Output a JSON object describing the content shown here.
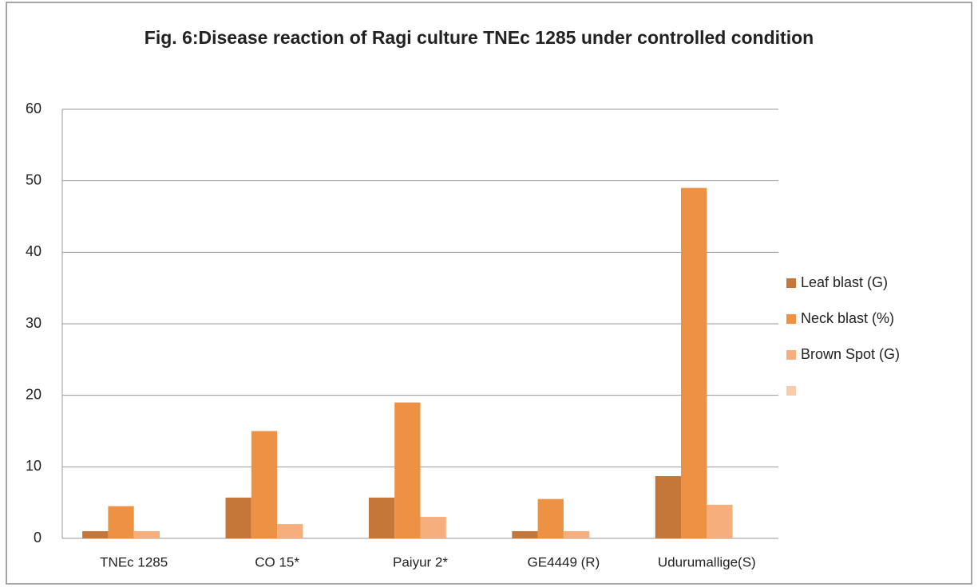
{
  "chart_data": {
    "type": "bar",
    "title": "Fig. 6:Disease reaction of Ragi culture TNEc 1285 under controlled condition",
    "categories": [
      "TNEc 1285",
      "CO 15*",
      "Paiyur 2*",
      "GE4449 (R)",
      "Udurumallige(S)"
    ],
    "series": [
      {
        "name": "Leaf blast (G)",
        "color": "#c5773a",
        "values": [
          1,
          5.7,
          5.7,
          1,
          8.7
        ]
      },
      {
        "name": "Neck blast (%)",
        "color": "#ed9144",
        "values": [
          4.5,
          15,
          19,
          5.5,
          49
        ]
      },
      {
        "name": "Brown Spot (G)",
        "color": "#f5ae7c",
        "values": [
          1,
          2,
          3,
          1,
          4.7
        ]
      },
      {
        "color": "#f9cbad",
        "values": [
          null,
          null,
          null,
          null,
          null
        ]
      }
    ],
    "ylim": [
      0,
      60
    ],
    "yticks": [
      0,
      10,
      20,
      30,
      40,
      50,
      60
    ],
    "grid": true,
    "legend": "right"
  }
}
